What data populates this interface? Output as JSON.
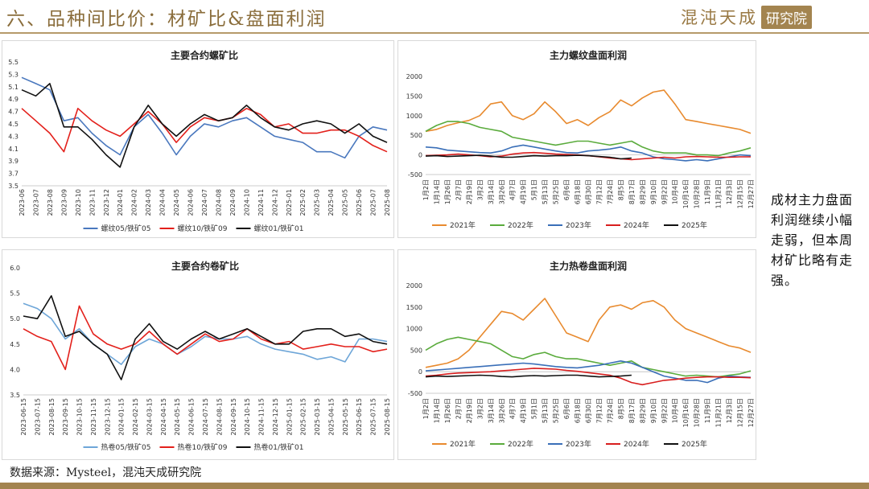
{
  "header": {
    "title": "六、品种间比价：材矿比&盘面利润",
    "logo_text": "混沌天成",
    "logo_box": "研究院"
  },
  "comment": "成材主力盘面利润继续小幅走弱，但本周材矿比略有走强。",
  "source": "数据来源：Mysteel，混沌天成研究院",
  "colors": {
    "brand": "#a3844f",
    "title": "#8a6d3b"
  },
  "chart_data": [
    {
      "id": "rebar-ore",
      "type": "line",
      "title": "主要合约螺矿比",
      "ylim": [
        3.5,
        5.5
      ],
      "yticks": [
        "3.5",
        "3.7",
        "3.9",
        "4.1",
        "4.3",
        "4.5",
        "4.7",
        "4.9",
        "5.1",
        "5.3",
        "5.5"
      ],
      "x": [
        "2023-06",
        "2023-07",
        "2023-08",
        "2023-09",
        "2023-10",
        "2023-11",
        "2023-12",
        "2024-01",
        "2024-02",
        "2024-03",
        "2024-04",
        "2024-05",
        "2024-06",
        "2024-07",
        "2024-08",
        "2024-09",
        "2024-10",
        "2024-11",
        "2024-12",
        "2025-01",
        "2025-02",
        "2025-03",
        "2025-04",
        "2025-05",
        "2025-06",
        "2025-07",
        "2025-08"
      ],
      "series": [
        {
          "name": "螺纹05/铁矿05",
          "color": "#4a78be",
          "values": [
            5.25,
            5.15,
            5.05,
            4.55,
            4.6,
            4.35,
            4.15,
            4.0,
            4.45,
            4.65,
            4.35,
            4.0,
            4.3,
            4.5,
            4.45,
            4.55,
            4.6,
            4.45,
            4.3,
            4.25,
            4.2,
            4.05,
            4.05,
            3.95,
            4.3,
            4.45,
            4.4
          ]
        },
        {
          "name": "螺纹10/铁矿09",
          "color": "#e3201b",
          "values": [
            4.75,
            4.55,
            4.35,
            4.05,
            4.75,
            4.55,
            4.4,
            4.3,
            4.5,
            4.7,
            4.5,
            4.2,
            4.45,
            4.6,
            4.55,
            4.6,
            4.75,
            4.65,
            4.45,
            4.5,
            4.35,
            4.35,
            4.4,
            4.4,
            4.3,
            4.15,
            4.05
          ]
        },
        {
          "name": "螺纹01/铁矿01",
          "color": "#111111",
          "values": [
            5.05,
            4.95,
            5.15,
            4.45,
            4.45,
            4.25,
            4.0,
            3.8,
            4.45,
            4.8,
            4.5,
            4.3,
            4.5,
            4.65,
            4.55,
            4.6,
            4.8,
            4.6,
            4.45,
            4.4,
            4.5,
            4.55,
            4.5,
            4.35,
            4.5,
            4.3,
            4.2
          ]
        }
      ]
    },
    {
      "id": "rebar-profit",
      "type": "line",
      "title": "主力螺纹盘面利润",
      "ylim": [
        -500,
        2000
      ],
      "yticks": [
        "-500",
        "0",
        "500",
        "1000",
        "1500",
        "2000"
      ],
      "x": [
        "1月2日",
        "1月14日",
        "1月26日",
        "2月7日",
        "2月19日",
        "3月2日",
        "3月14日",
        "3月26日",
        "4月7日",
        "4月19日",
        "5月1日",
        "5月13日",
        "5月25日",
        "6月6日",
        "6月18日",
        "6月30日",
        "7月12日",
        "7月24日",
        "8月5日",
        "8月17日",
        "8月29日",
        "9月10日",
        "9月22日",
        "10月4日",
        "10月16日",
        "10月28日",
        "11月9日",
        "11月21日",
        "12月3日",
        "12月15日",
        "12月27日"
      ],
      "series": [
        {
          "name": "2021年",
          "color": "#e88a2e",
          "values": [
            600,
            650,
            750,
            820,
            880,
            1000,
            1300,
            1350,
            1000,
            900,
            1050,
            1350,
            1100,
            800,
            900,
            750,
            950,
            1100,
            1400,
            1250,
            1450,
            1600,
            1650,
            1300,
            900,
            850,
            800,
            750,
            700,
            650,
            550
          ]
        },
        {
          "name": "2022年",
          "color": "#5aab3c",
          "values": [
            600,
            750,
            850,
            850,
            800,
            700,
            650,
            600,
            450,
            400,
            350,
            300,
            250,
            300,
            350,
            350,
            300,
            250,
            300,
            350,
            200,
            100,
            50,
            50,
            50,
            0,
            0,
            -20,
            50,
            100,
            180
          ]
        },
        {
          "name": "2023年",
          "color": "#3a6fb8",
          "values": [
            200,
            180,
            120,
            100,
            80,
            60,
            50,
            100,
            200,
            250,
            200,
            150,
            100,
            60,
            50,
            100,
            120,
            150,
            200,
            100,
            50,
            -50,
            -100,
            -120,
            -150,
            -120,
            -150,
            -100,
            -50,
            0,
            -20
          ]
        },
        {
          "name": "2024年",
          "color": "#d81e1e",
          "values": [
            -20,
            -10,
            0,
            20,
            0,
            -20,
            -50,
            -30,
            20,
            50,
            60,
            40,
            20,
            10,
            0,
            -20,
            -50,
            -80,
            -100,
            -120,
            -100,
            -80,
            -60,
            -80,
            -50,
            -40,
            -50,
            -60,
            -60,
            -50,
            -50
          ]
        },
        {
          "name": "2025年",
          "color": "#111111",
          "values": [
            -30,
            -20,
            -40,
            -30,
            -20,
            -10,
            -30,
            -60,
            -60,
            -40,
            -20,
            -30,
            -20,
            -20,
            -10,
            -20,
            -40,
            -60,
            -100,
            -80,
            null,
            null,
            null,
            null,
            null,
            null,
            null,
            null,
            null,
            null,
            null
          ]
        }
      ]
    },
    {
      "id": "hrc-ore",
      "type": "line",
      "title": "主要合约卷矿比",
      "ylim": [
        3.5,
        6.0
      ],
      "yticks": [
        "3.5",
        "4.0",
        "4.5",
        "5.0",
        "5.5",
        "6.0"
      ],
      "x": [
        "2023-06-15",
        "2023-07-15",
        "2023-08-15",
        "2023-09-15",
        "2023-10-15",
        "2023-11-15",
        "2023-12-15",
        "2024-01-15",
        "2024-02-15",
        "2024-03-15",
        "2024-04-15",
        "2024-05-15",
        "2024-06-15",
        "2024-07-15",
        "2024-08-15",
        "2024-09-15",
        "2024-10-15",
        "2024-11-15",
        "2024-12-15",
        "2025-01-15",
        "2025-02-15",
        "2025-03-15",
        "2025-04-15",
        "2025-05-15",
        "2025-06-15",
        "2025-07-15",
        "2025-08-15"
      ],
      "series": [
        {
          "name": "热卷05/铁矿05",
          "color": "#6ea6d8",
          "values": [
            5.3,
            5.2,
            5.0,
            4.6,
            4.8,
            4.5,
            4.3,
            4.1,
            4.45,
            4.6,
            4.5,
            4.3,
            4.45,
            4.65,
            4.6,
            4.6,
            4.65,
            4.5,
            4.4,
            4.35,
            4.3,
            4.2,
            4.25,
            4.15,
            4.6,
            4.6,
            4.55
          ]
        },
        {
          "name": "热卷10/铁矿09",
          "color": "#e3201b",
          "values": [
            4.8,
            4.65,
            4.55,
            4.0,
            5.25,
            4.7,
            4.5,
            4.4,
            4.5,
            4.75,
            4.5,
            4.3,
            4.5,
            4.7,
            4.55,
            4.6,
            4.8,
            4.6,
            4.5,
            4.55,
            4.4,
            4.45,
            4.5,
            4.45,
            4.45,
            4.35,
            4.4
          ]
        },
        {
          "name": "热卷01/铁矿01",
          "color": "#111111",
          "values": [
            5.05,
            5.0,
            5.45,
            4.65,
            4.75,
            4.5,
            4.3,
            3.8,
            4.6,
            4.9,
            4.55,
            4.4,
            4.6,
            4.75,
            4.6,
            4.7,
            4.8,
            4.65,
            4.5,
            4.5,
            4.75,
            4.8,
            4.8,
            4.65,
            4.7,
            4.55,
            4.5
          ]
        }
      ]
    },
    {
      "id": "hrc-profit",
      "type": "line",
      "title": "主力热卷盘面利润",
      "ylim": [
        -500,
        2000
      ],
      "yticks": [
        "-500",
        "0",
        "500",
        "1000",
        "1500",
        "2000"
      ],
      "x": [
        "1月2日",
        "1月14日",
        "1月26日",
        "2月7日",
        "2月19日",
        "3月2日",
        "3月14日",
        "3月26日",
        "4月7日",
        "4月19日",
        "5月1日",
        "5月13日",
        "5月25日",
        "6月6日",
        "6月18日",
        "6月30日",
        "7月12日",
        "7月24日",
        "8月5日",
        "8月17日",
        "8月29日",
        "9月10日",
        "9月22日",
        "10月4日",
        "10月16日",
        "10月28日",
        "11月9日",
        "11月21日",
        "12月3日",
        "12月15日",
        "12月27日"
      ],
      "series": [
        {
          "name": "2021年",
          "color": "#e88a2e",
          "values": [
            100,
            150,
            200,
            300,
            500,
            800,
            1100,
            1400,
            1350,
            1200,
            1450,
            1700,
            1300,
            900,
            800,
            700,
            1200,
            1500,
            1550,
            1450,
            1600,
            1650,
            1500,
            1200,
            1000,
            900,
            800,
            700,
            600,
            550,
            450
          ]
        },
        {
          "name": "2022年",
          "color": "#5aab3c",
          "values": [
            500,
            650,
            750,
            800,
            750,
            700,
            650,
            500,
            350,
            300,
            400,
            450,
            350,
            300,
            300,
            250,
            200,
            150,
            200,
            250,
            100,
            50,
            0,
            -50,
            -100,
            -80,
            -100,
            -120,
            -80,
            -50,
            20
          ]
        },
        {
          "name": "2023年",
          "color": "#3a6fb8",
          "values": [
            20,
            40,
            60,
            80,
            100,
            120,
            140,
            160,
            180,
            200,
            180,
            150,
            120,
            100,
            90,
            120,
            150,
            200,
            250,
            200,
            100,
            0,
            -100,
            -150,
            -200,
            -200,
            -250,
            -150,
            -100,
            -120,
            -130
          ]
        },
        {
          "name": "2024年",
          "color": "#d81e1e",
          "values": [
            -100,
            -80,
            -50,
            -30,
            -20,
            -10,
            0,
            20,
            40,
            60,
            80,
            70,
            60,
            30,
            10,
            -20,
            -50,
            -80,
            -150,
            -250,
            -300,
            -250,
            -200,
            -180,
            -150,
            -130,
            -120,
            -120,
            -130,
            -130,
            -140
          ]
        },
        {
          "name": "2025年",
          "color": "#111111",
          "values": [
            -120,
            -100,
            -110,
            -100,
            -90,
            -80,
            -90,
            -110,
            -120,
            -100,
            -90,
            -100,
            -90,
            -80,
            -80,
            -100,
            -120,
            -110,
            -100,
            -80,
            null,
            null,
            null,
            null,
            null,
            null,
            null,
            null,
            null,
            null,
            null
          ]
        }
      ]
    }
  ]
}
